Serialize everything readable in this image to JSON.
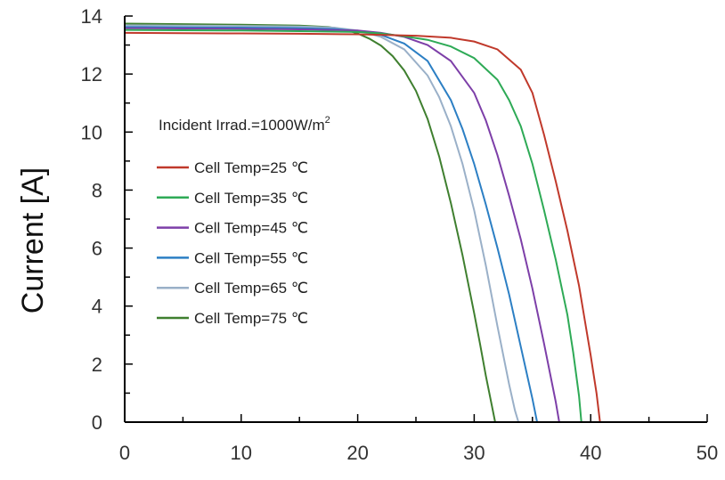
{
  "chart_data": {
    "type": "line",
    "title": "",
    "xlabel": "",
    "ylabel": "Current [A]",
    "xlim": [
      0,
      50
    ],
    "ylim": [
      0,
      14
    ],
    "x_ticks": [
      0,
      10,
      20,
      30,
      40,
      50
    ],
    "y_ticks": [
      0,
      2,
      4,
      6,
      8,
      10,
      12,
      14
    ],
    "grid": false,
    "annotation": {
      "text": "Incident Irrad.=1000W/m",
      "superscript": "2"
    },
    "legend_position": "left-middle",
    "series": [
      {
        "name": "Cell Temp=25 ℃",
        "color": "#c0392b",
        "x": [
          0,
          5,
          10,
          15,
          20,
          25,
          28,
          30,
          32,
          34,
          35,
          36,
          37,
          38,
          39,
          39.5,
          40,
          40.5,
          40.8
        ],
        "y": [
          13.42,
          13.41,
          13.4,
          13.39,
          13.37,
          13.32,
          13.25,
          13.12,
          12.85,
          12.15,
          11.35,
          9.9,
          8.3,
          6.6,
          4.7,
          3.5,
          2.3,
          1.0,
          0
        ]
      },
      {
        "name": "Cell Temp=35 ℃",
        "color": "#2eaa56",
        "x": [
          0,
          5,
          10,
          15,
          20,
          22,
          24,
          26,
          28,
          30,
          32,
          33,
          34,
          35,
          36,
          37,
          38,
          38.5,
          39,
          39.2
        ],
        "y": [
          13.52,
          13.51,
          13.5,
          13.48,
          13.45,
          13.4,
          13.3,
          13.18,
          12.95,
          12.55,
          11.8,
          11.1,
          10.2,
          8.9,
          7.3,
          5.6,
          3.7,
          2.4,
          0.9,
          0
        ]
      },
      {
        "name": "Cell Temp=45 ℃",
        "color": "#7d3fa8",
        "x": [
          0,
          5,
          10,
          15,
          20,
          22,
          24,
          26,
          28,
          30,
          31,
          32,
          33,
          34,
          35,
          36,
          36.5,
          37,
          37.3
        ],
        "y": [
          13.58,
          13.57,
          13.56,
          13.54,
          13.5,
          13.42,
          13.28,
          13.0,
          12.45,
          11.35,
          10.4,
          9.2,
          7.8,
          6.3,
          4.6,
          2.7,
          1.7,
          0.7,
          0
        ]
      },
      {
        "name": "Cell Temp=55 ℃",
        "color": "#2c7fc4",
        "x": [
          0,
          5,
          10,
          15,
          18,
          20,
          22,
          24,
          26,
          28,
          29,
          30,
          31,
          32,
          33,
          34,
          34.5,
          35,
          35.4
        ],
        "y": [
          13.62,
          13.61,
          13.6,
          13.58,
          13.55,
          13.49,
          13.35,
          13.05,
          12.45,
          11.1,
          10.1,
          8.9,
          7.5,
          6.0,
          4.4,
          2.6,
          1.7,
          0.8,
          0
        ]
      },
      {
        "name": "Cell Temp=65 ℃",
        "color": "#9ab0c8",
        "x": [
          0,
          5,
          10,
          15,
          18,
          20,
          22,
          24,
          26,
          27,
          28,
          29,
          30,
          31,
          32,
          33,
          33.5,
          33.8
        ],
        "y": [
          13.68,
          13.67,
          13.66,
          13.64,
          13.6,
          13.5,
          13.28,
          12.85,
          11.95,
          11.2,
          10.2,
          8.9,
          7.3,
          5.4,
          3.3,
          1.3,
          0.4,
          0
        ]
      },
      {
        "name": "Cell Temp=75 ℃",
        "color": "#3f7f2f",
        "x": [
          0,
          5,
          10,
          15,
          17.5,
          19,
          20,
          21,
          22,
          23,
          24,
          25,
          26,
          27,
          28,
          29,
          30,
          30.5,
          31,
          31.5,
          31.8
        ],
        "y": [
          13.74,
          13.72,
          13.7,
          13.67,
          13.62,
          13.52,
          13.4,
          13.22,
          12.98,
          12.62,
          12.12,
          11.42,
          10.45,
          9.15,
          7.55,
          5.75,
          3.75,
          2.7,
          1.6,
          0.6,
          0
        ]
      }
    ]
  }
}
